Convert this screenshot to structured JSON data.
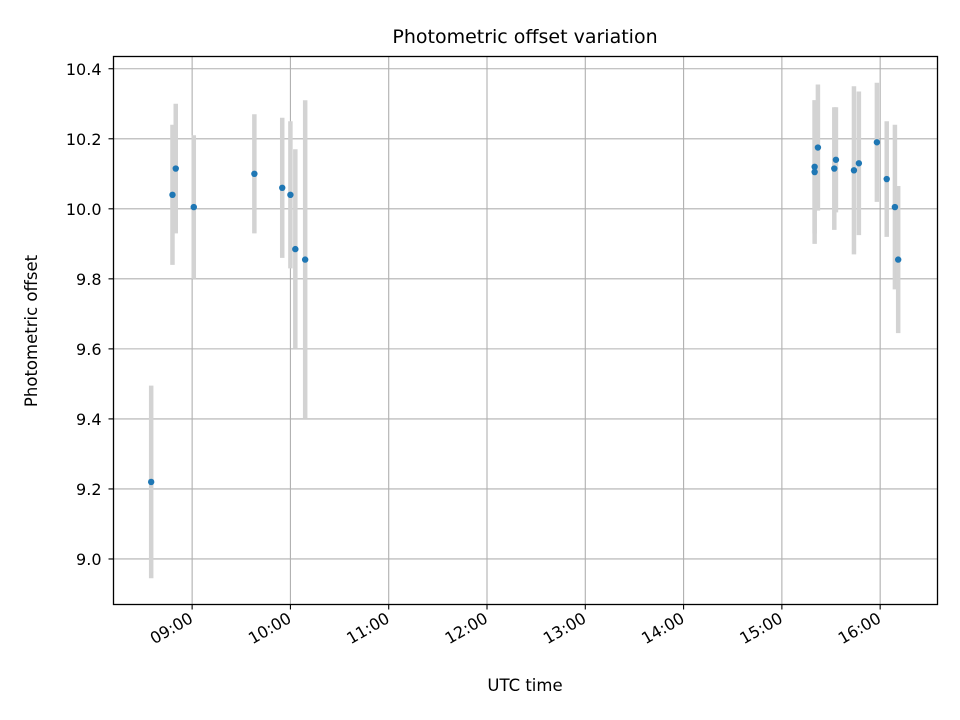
{
  "chart_data": {
    "type": "scatter",
    "title": "Photometric offset variation",
    "xlabel": "UTC time",
    "ylabel": "Photometric offset",
    "x_tick_labels": [
      "09:00",
      "10:00",
      "11:00",
      "12:00",
      "13:00",
      "14:00",
      "15:00",
      "16:00"
    ],
    "y_tick_labels": [
      "9.0",
      "9.2",
      "9.4",
      "9.6",
      "9.8",
      "10.0",
      "10.2",
      "10.4"
    ],
    "xlim": [
      "08:12",
      "16:35"
    ],
    "ylim": [
      8.87,
      10.435
    ],
    "grid": true,
    "marker_color": "#1f77b4",
    "errorbar_color": "#d3d3d3",
    "points": [
      {
        "x": "08:35",
        "y": 9.22,
        "yerr": 0.275
      },
      {
        "x": "08:48",
        "y": 10.04,
        "yerr": 0.2
      },
      {
        "x": "08:50",
        "y": 10.115,
        "yerr": 0.185
      },
      {
        "x": "09:01",
        "y": 10.005,
        "yerr": 0.205
      },
      {
        "x": "09:38",
        "y": 10.1,
        "yerr": 0.17
      },
      {
        "x": "09:55",
        "y": 10.06,
        "yerr": 0.2
      },
      {
        "x": "10:00",
        "y": 10.04,
        "yerr": 0.21
      },
      {
        "x": "10:03",
        "y": 9.885,
        "yerr": 0.285
      },
      {
        "x": "10:09",
        "y": 9.855,
        "yerr": 0.455
      },
      {
        "x": "15:20",
        "y": 10.105,
        "yerr": 0.205
      },
      {
        "x": "15:20",
        "y": 10.12,
        "yerr": 0.19
      },
      {
        "x": "15:22",
        "y": 10.175,
        "yerr": 0.18
      },
      {
        "x": "15:32",
        "y": 10.115,
        "yerr": 0.175
      },
      {
        "x": "15:33",
        "y": 10.14,
        "yerr": 0.15
      },
      {
        "x": "15:44",
        "y": 10.11,
        "yerr": 0.24
      },
      {
        "x": "15:47",
        "y": 10.13,
        "yerr": 0.205
      },
      {
        "x": "15:58",
        "y": 10.19,
        "yerr": 0.17
      },
      {
        "x": "16:04",
        "y": 10.085,
        "yerr": 0.165
      },
      {
        "x": "16:09",
        "y": 10.005,
        "yerr": 0.235
      },
      {
        "x": "16:11",
        "y": 9.855,
        "yerr": 0.21
      }
    ]
  }
}
